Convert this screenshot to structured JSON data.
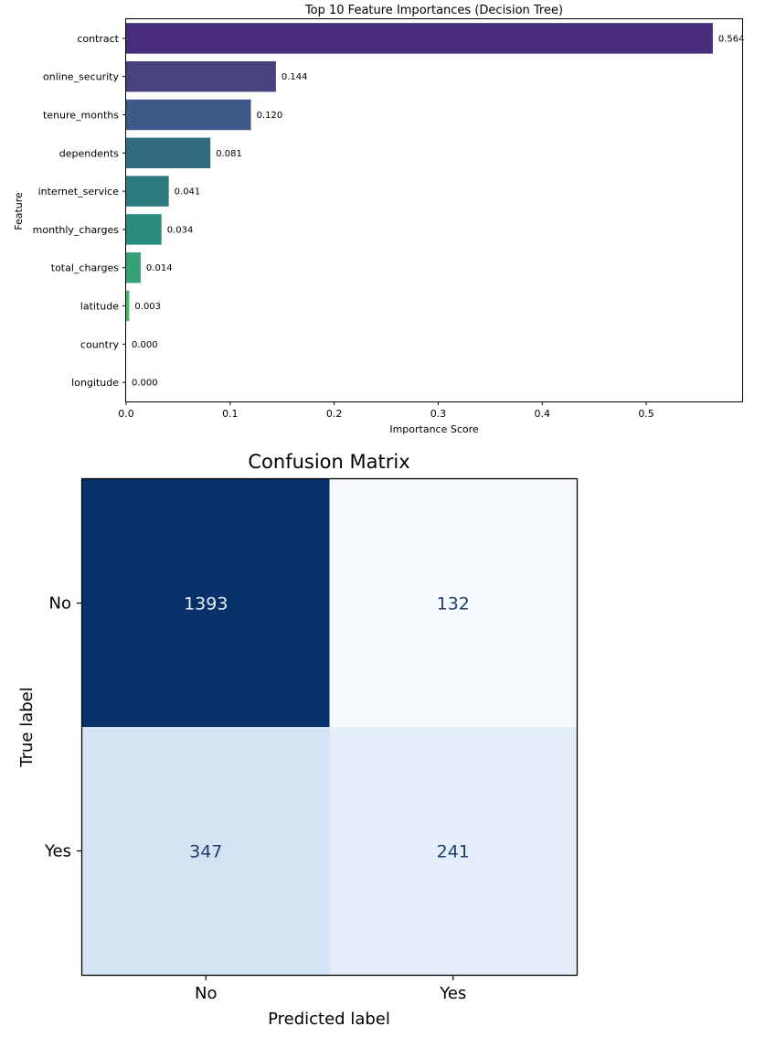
{
  "chart_data": [
    {
      "type": "bar",
      "orientation": "horizontal",
      "title": "Top 10 Feature Importances (Decision Tree)",
      "xlabel": "Importance Score",
      "ylabel": "Feature",
      "xlim": [
        0,
        0.5922
      ],
      "x_ticks": [
        "0.0",
        "0.1",
        "0.2",
        "0.3",
        "0.4",
        "0.5"
      ],
      "categories": [
        "contract",
        "online_security",
        "tenure_months",
        "dependents",
        "internet_service",
        "monthly_charges",
        "total_charges",
        "latitude",
        "country",
        "longitude"
      ],
      "values": [
        0.564,
        0.144,
        0.12,
        0.081,
        0.041,
        0.034,
        0.014,
        0.003,
        0.0,
        0.0
      ],
      "value_labels": [
        "0.564",
        "0.144",
        "0.120",
        "0.081",
        "0.041",
        "0.034",
        "0.014",
        "0.003",
        "0.000",
        "0.000"
      ],
      "colors": [
        "#472d7b",
        "#46437f",
        "#3e5887",
        "#326b80",
        "#2d7a7f",
        "#2a8c7c",
        "#35a174",
        "#48b76a",
        "#58c865",
        "#6ad45d"
      ],
      "grid": false,
      "legend": "none"
    },
    {
      "type": "heatmap",
      "title": "Confusion Matrix",
      "xlabel": "Predicted label",
      "ylabel": "True label",
      "x_categories": [
        "No",
        "Yes"
      ],
      "y_categories": [
        "No",
        "Yes"
      ],
      "matrix": [
        [
          1393,
          132
        ],
        [
          347,
          241
        ]
      ],
      "colormap": "Blues",
      "cell_colors": [
        [
          "#08306b",
          "#f7fbff"
        ],
        [
          "#d4e3f3",
          "#e3eef8"
        ]
      ],
      "text_colors": [
        [
          "#e8eef6",
          "#1f3d6b"
        ],
        [
          "#1f3d6b",
          "#1f3d6b"
        ]
      ],
      "grid": false,
      "legend": "none"
    }
  ]
}
